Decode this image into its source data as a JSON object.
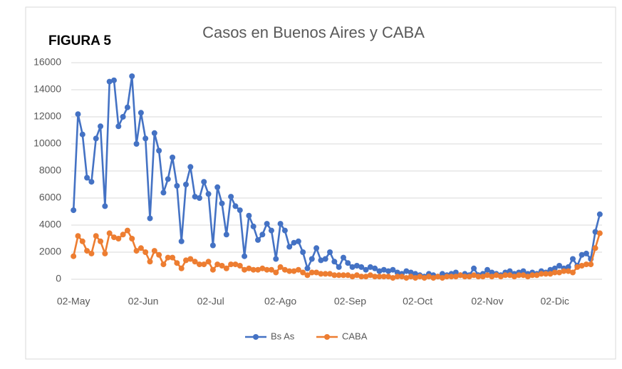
{
  "chart_data": {
    "type": "line",
    "figure_label": "FIGURA 5",
    "title": "Casos en Buenos Aires y CABA",
    "x": [
      0,
      2,
      4,
      6,
      8,
      10,
      12,
      14,
      16,
      18,
      20,
      22,
      24,
      26,
      28,
      30,
      32,
      34,
      36,
      38,
      40,
      42,
      44,
      46,
      48,
      50,
      52,
      54,
      56,
      58,
      60,
      62,
      64,
      66,
      68,
      70,
      72,
      74,
      76,
      78,
      80,
      82,
      84,
      86,
      88,
      90,
      92,
      94,
      96,
      98,
      100,
      102,
      104,
      106,
      108,
      110,
      112,
      114,
      116,
      118,
      120,
      122,
      124,
      126,
      128,
      130,
      132,
      134,
      136,
      138,
      140,
      142,
      144,
      146,
      148,
      150,
      152,
      154,
      156,
      158,
      160,
      162,
      164,
      166,
      168,
      170,
      172,
      174,
      176,
      178,
      180,
      182,
      184,
      186,
      188,
      190,
      192,
      194,
      196,
      198,
      200,
      202,
      204,
      206,
      208,
      210,
      212,
      214,
      216,
      218,
      220,
      222,
      224,
      226,
      228,
      230,
      232,
      234
    ],
    "series": [
      {
        "name": "Bs As",
        "color": "#4472c4",
        "values": [
          5100,
          12200,
          10700,
          7500,
          7200,
          10400,
          11300,
          5400,
          14600,
          14700,
          11300,
          12000,
          12700,
          15000,
          10000,
          12300,
          10400,
          4500,
          10800,
          9500,
          6400,
          7400,
          9000,
          6900,
          2800,
          7000,
          8300,
          6100,
          6000,
          7200,
          6300,
          2500,
          6800,
          5600,
          3300,
          6100,
          5400,
          5100,
          1700,
          4700,
          3900,
          2900,
          3300,
          4100,
          3600,
          1500,
          4100,
          3600,
          2400,
          2700,
          2800,
          2000,
          800,
          1500,
          2300,
          1400,
          1500,
          2000,
          1300,
          900,
          1600,
          1200,
          900,
          1000,
          900,
          700,
          900,
          800,
          600,
          700,
          600,
          700,
          500,
          400,
          600,
          500,
          400,
          300,
          200,
          400,
          300,
          200,
          400,
          300,
          400,
          500,
          300,
          400,
          300,
          800,
          300,
          400,
          700,
          500,
          400,
          300,
          500,
          600,
          400,
          500,
          600,
          400,
          500,
          400,
          600,
          500,
          700,
          800,
          1000,
          800,
          900,
          1500,
          1000,
          1800,
          1900,
          1500,
          3500,
          4800
        ]
      },
      {
        "name": "CABA",
        "color": "#ed7d31",
        "values": [
          1700,
          3200,
          2800,
          2100,
          1900,
          3200,
          2800,
          1900,
          3400,
          3100,
          3000,
          3300,
          3600,
          3000,
          2100,
          2300,
          2000,
          1300,
          2100,
          1800,
          1100,
          1600,
          1600,
          1200,
          800,
          1400,
          1500,
          1300,
          1100,
          1100,
          1300,
          700,
          1100,
          1000,
          800,
          1100,
          1100,
          1000,
          700,
          800,
          700,
          700,
          800,
          700,
          700,
          500,
          900,
          700,
          600,
          600,
          700,
          500,
          300,
          500,
          500,
          400,
          400,
          400,
          300,
          300,
          300,
          300,
          200,
          300,
          200,
          200,
          300,
          200,
          200,
          200,
          200,
          100,
          200,
          200,
          100,
          200,
          100,
          200,
          100,
          200,
          100,
          200,
          100,
          200,
          200,
          200,
          300,
          200,
          200,
          300,
          200,
          200,
          300,
          200,
          300,
          200,
          300,
          300,
          200,
          300,
          300,
          200,
          300,
          300,
          400,
          400,
          400,
          500,
          500,
          600,
          600,
          500,
          900,
          1000,
          1100,
          1100,
          2300,
          3400
        ]
      }
    ],
    "xlim": [
      -1,
      235
    ],
    "xticks": [
      {
        "value": 0,
        "label": "02-May"
      },
      {
        "value": 31,
        "label": "02-Jun"
      },
      {
        "value": 61,
        "label": "02-Jul"
      },
      {
        "value": 92,
        "label": "02-Ago"
      },
      {
        "value": 123,
        "label": "02-Sep"
      },
      {
        "value": 153,
        "label": "02-Oct"
      },
      {
        "value": 184,
        "label": "02-Nov"
      },
      {
        "value": 214,
        "label": "02-Dic"
      }
    ],
    "ylim": [
      0,
      16000
    ],
    "yticks": [
      0,
      2000,
      4000,
      6000,
      8000,
      10000,
      12000,
      14000,
      16000
    ],
    "grid": true,
    "legend": "bottom"
  }
}
